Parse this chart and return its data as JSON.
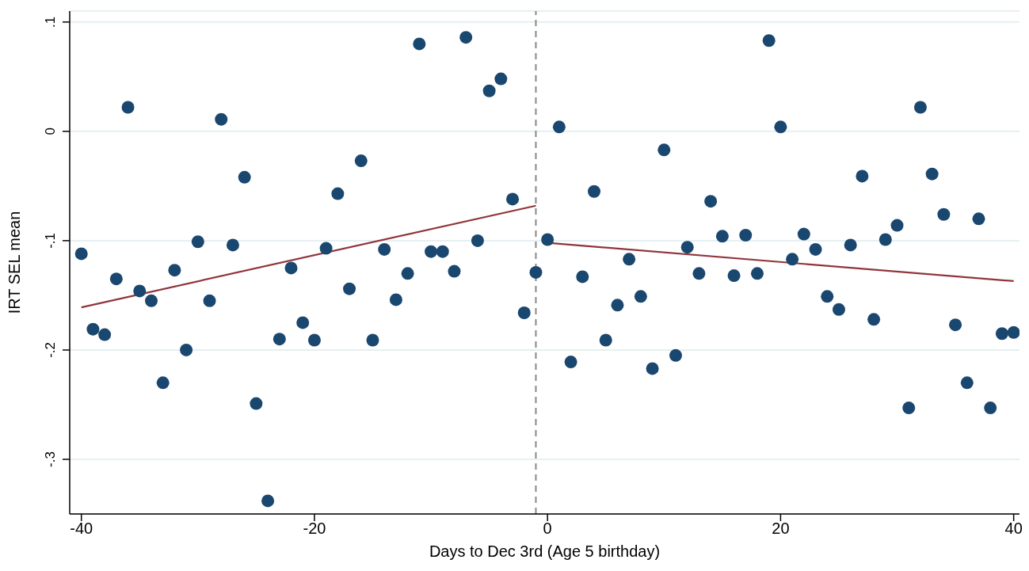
{
  "chart_data": {
    "type": "scatter",
    "xlabel": "Days to Dec 3rd (Age 5 birthday)",
    "ylabel": "IRT SEL mean",
    "xlim": [
      -41,
      40.5
    ],
    "xticks": [
      -40,
      -20,
      0,
      20,
      40
    ],
    "ylim": [
      -0.35,
      0.11
    ],
    "yticks": [
      {
        "value": 0.1,
        "label": ".1"
      },
      {
        "value": 0,
        "label": "0"
      },
      {
        "value": -0.1,
        "label": "-.1"
      },
      {
        "value": -0.2,
        "label": "-.2"
      },
      {
        "value": -0.3,
        "label": "-.3"
      }
    ],
    "grid": "y",
    "marker": "circle",
    "ref_lines": [
      {
        "axis": "x",
        "value": -1,
        "color": "#888888",
        "line_style": "dashed"
      }
    ],
    "series": [
      {
        "type": "scatter",
        "color": "#1a476f",
        "x": [
          -40,
          -39,
          -38,
          -37,
          -36,
          -35,
          -34,
          -33,
          -32,
          -31,
          -30,
          -29,
          -28,
          -27,
          -26,
          -25,
          -24,
          -23,
          -22,
          -21,
          -20,
          -19,
          -18,
          -17,
          -16,
          -15,
          -14,
          -13,
          -12,
          -11,
          -10,
          -9,
          -8,
          -7,
          -6,
          -5,
          -4,
          -3,
          -2,
          -1,
          0,
          1,
          2,
          3,
          4,
          5,
          6,
          7,
          8,
          9,
          10,
          11,
          12,
          13,
          14,
          15,
          16,
          17,
          18,
          19,
          20,
          21,
          22,
          23,
          24,
          25,
          26,
          27,
          28,
          29,
          30,
          31,
          32,
          33,
          34,
          35,
          36,
          37,
          38,
          39,
          40
        ],
        "values": [
          -0.112,
          -0.181,
          -0.186,
          -0.135,
          0.022,
          -0.146,
          -0.155,
          -0.23,
          -0.127,
          -0.2,
          -0.101,
          -0.155,
          0.011,
          -0.104,
          -0.042,
          -0.249,
          -0.338,
          -0.19,
          -0.125,
          -0.175,
          -0.191,
          -0.107,
          -0.057,
          -0.144,
          -0.027,
          -0.191,
          -0.108,
          -0.154,
          -0.13,
          0.08,
          -0.11,
          -0.11,
          -0.128,
          0.086,
          -0.1,
          0.037,
          0.048,
          -0.062,
          -0.166,
          -0.129,
          -0.099,
          0.004,
          -0.211,
          -0.133,
          -0.055,
          -0.191,
          -0.159,
          -0.117,
          -0.151,
          -0.217,
          -0.017,
          -0.205,
          -0.106,
          -0.13,
          -0.064,
          -0.096,
          -0.132,
          -0.095,
          -0.13,
          0.083,
          0.004,
          -0.117,
          -0.094,
          -0.108,
          -0.151,
          -0.163,
          -0.104,
          -0.041,
          -0.172,
          -0.099,
          -0.086,
          -0.253,
          0.022,
          -0.039,
          -0.076,
          -0.177,
          -0.23,
          -0.08,
          -0.253,
          -0.185,
          -0.184
        ]
      },
      {
        "type": "line",
        "color": "#90353b",
        "marker": "none",
        "x": [
          -40,
          -1
        ],
        "values": [
          -0.161,
          -0.068
        ]
      },
      {
        "type": "line",
        "color": "#90353b",
        "marker": "none",
        "x": [
          0,
          40
        ],
        "values": [
          -0.102,
          -0.137
        ]
      }
    ]
  }
}
